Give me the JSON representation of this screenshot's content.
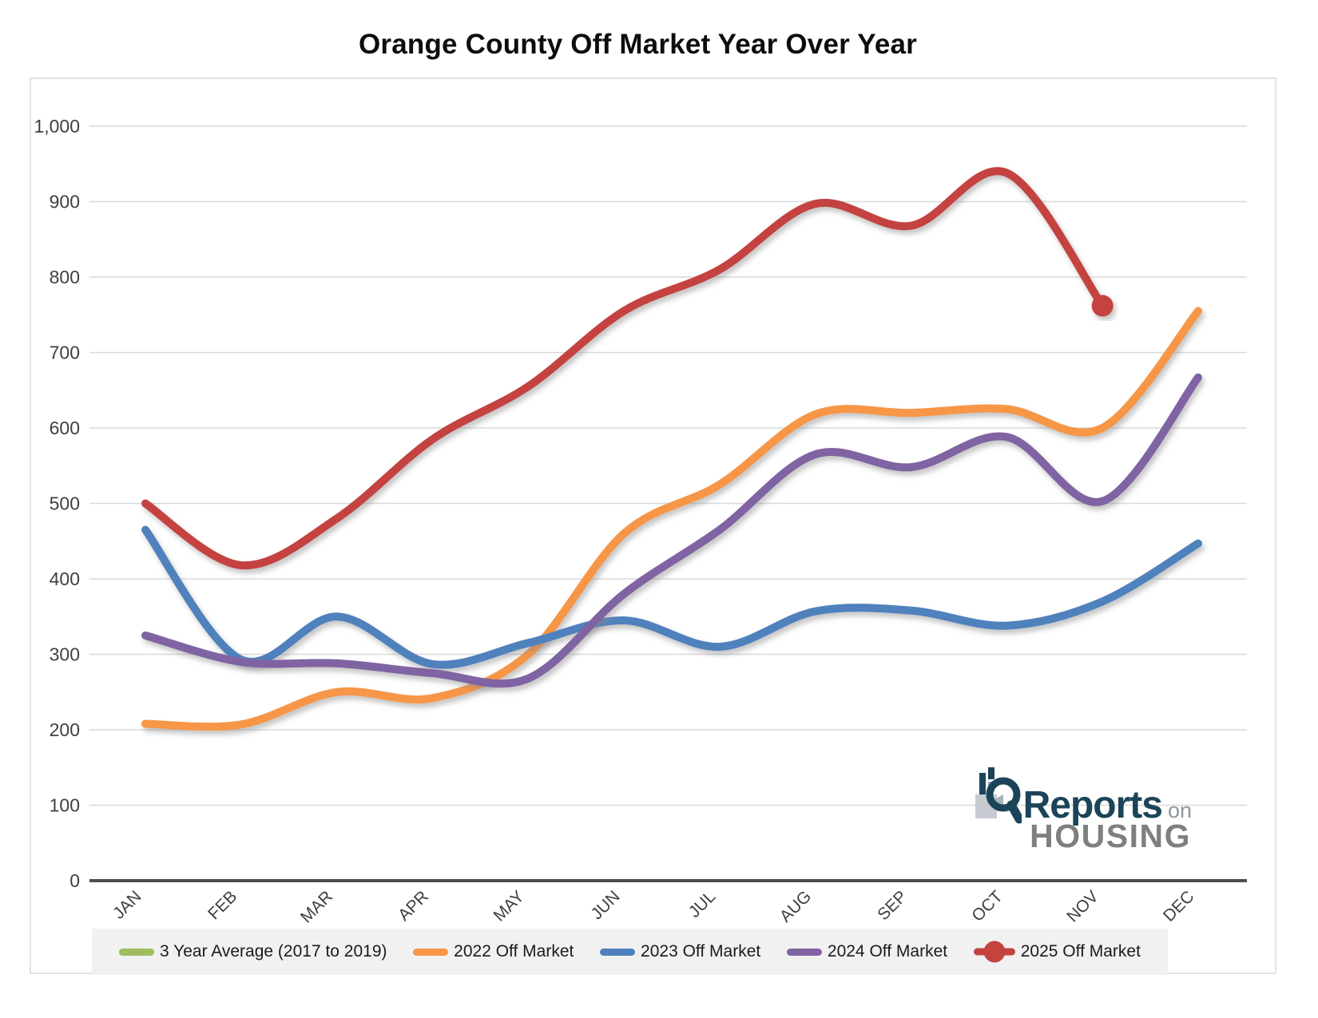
{
  "title": "Orange County Off Market Year Over Year",
  "chart_data": {
    "type": "line",
    "title": "Orange County Off Market Year Over Year",
    "categories": [
      "JAN",
      "FEB",
      "MAR",
      "APR",
      "MAY",
      "JUN",
      "JUL",
      "AUG",
      "SEP",
      "OCT",
      "NOV",
      "DEC"
    ],
    "y_axis": {
      "min": 0,
      "max": 1000,
      "step": 100,
      "tick_labels": [
        "0",
        "100",
        "200",
        "300",
        "400",
        "500",
        "600",
        "700",
        "800",
        "900",
        "1,000"
      ]
    },
    "grid": true,
    "legend_position": "bottom",
    "line_style": "smooth",
    "series": [
      {
        "name": "3 Year Average (2017 to 2019)",
        "color": "#9fbc60",
        "marker": "none",
        "values": []
      },
      {
        "name": "2022 Off Market",
        "color": "#F79646",
        "marker": "none",
        "values": [
          208,
          207,
          250,
          242,
          300,
          460,
          525,
          618,
          620,
          625,
          600,
          755
        ]
      },
      {
        "name": "2023 Off Market",
        "color": "#4F81BD",
        "marker": "none",
        "values": [
          465,
          293,
          350,
          287,
          315,
          345,
          310,
          357,
          358,
          338,
          370,
          447
        ]
      },
      {
        "name": "2024 Off Market",
        "color": "#8064A2",
        "marker": "none",
        "values": [
          325,
          290,
          288,
          275,
          268,
          380,
          465,
          565,
          548,
          588,
          503,
          667
        ]
      },
      {
        "name": "2025 Off Market",
        "color": "#c4433f",
        "marker": "end-circle",
        "values": [
          500,
          418,
          480,
          585,
          655,
          755,
          810,
          897,
          868,
          938,
          762
        ]
      }
    ]
  },
  "logo": {
    "reports": "Reports",
    "on": "on",
    "housing": "HOUSING"
  }
}
